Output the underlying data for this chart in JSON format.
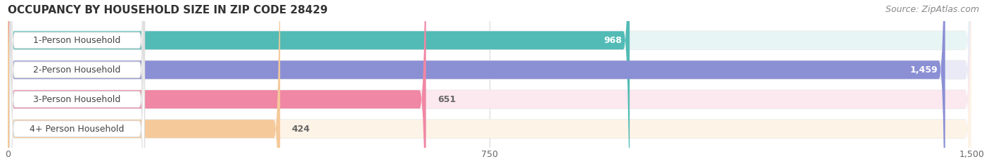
{
  "title": "OCCUPANCY BY HOUSEHOLD SIZE IN ZIP CODE 28429",
  "source": "Source: ZipAtlas.com",
  "categories": [
    "1-Person Household",
    "2-Person Household",
    "3-Person Household",
    "4+ Person Household"
  ],
  "values": [
    968,
    1459,
    651,
    424
  ],
  "bar_colors": [
    "#52bbb5",
    "#8b8fd4",
    "#f087a4",
    "#f5c99a"
  ],
  "bar_bg_colors": [
    "#e8f5f5",
    "#eaeaf7",
    "#fce8ef",
    "#fdf3e6"
  ],
  "xlim": [
    0,
    1500
  ],
  "xticks": [
    0,
    750,
    1500
  ],
  "background_color": "#ffffff",
  "bar_bg_outer": "#ebebeb",
  "title_fontsize": 11,
  "label_fontsize": 9,
  "value_fontsize": 9,
  "source_fontsize": 9,
  "bar_height": 0.62,
  "label_box_color": "#ffffff"
}
